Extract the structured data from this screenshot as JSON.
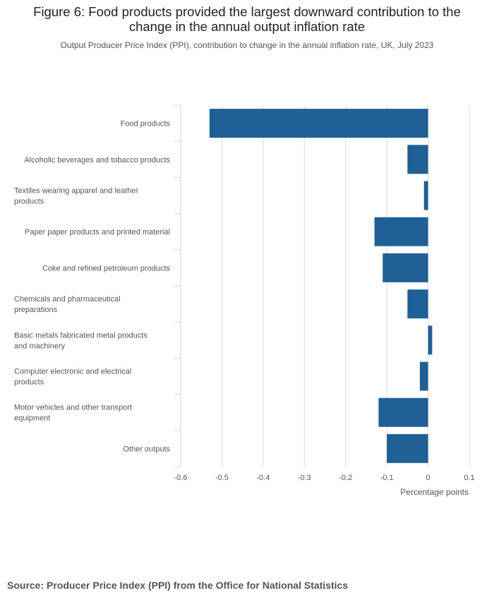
{
  "title": "Figure 6: Food products provided the largest downward contribution to the change in the annual output inflation rate",
  "subtitle": "Output Producer Price Index (PPI), contribution to change in the annual inflation rate, UK, July 2023",
  "source": "Source: Producer Price Index (PPI) from the Office for National Statistics",
  "colors": {
    "bar": "#206095",
    "grid": "#d9d9d9",
    "axis_line": "#c3d7ec",
    "label_text": "#555555"
  },
  "chart_data": {
    "type": "bar",
    "orientation": "horizontal",
    "categories": [
      "Food products",
      "Alcoholic beverages and tobacco products",
      "Textiles wearing apparel and leather products",
      "Paper paper products and printed material",
      "Coke and refined petroleum products",
      "Chemicals and pharmaceutical preparations",
      "Basic metals fabricated metal products and machinery",
      "Computer electronic and electrical products",
      "Motor vehicles and other transport equipment",
      "Other outputs"
    ],
    "category_lines": [
      [
        "Food products"
      ],
      [
        "Alcoholic beverages and tobacco products"
      ],
      [
        "Textiles wearing apparel and leather",
        "products"
      ],
      [
        "Paper paper products and printed material"
      ],
      [
        "Coke and refined petroleum products"
      ],
      [
        "Chemicals and pharmaceutical",
        "preparations"
      ],
      [
        "Basic metals fabricated metal products",
        "and machinery"
      ],
      [
        "Computer electronic and electrical",
        "products"
      ],
      [
        "Motor vehicles and other transport",
        "equipment"
      ],
      [
        "Other outputs"
      ]
    ],
    "values": [
      -0.53,
      -0.05,
      -0.01,
      -0.13,
      -0.11,
      -0.05,
      0.01,
      -0.02,
      -0.12,
      -0.1
    ],
    "xlabel": "Percentage points",
    "ylabel": "",
    "xlim": [
      -0.6,
      0.1
    ],
    "xticks": [
      -0.6,
      -0.5,
      -0.4,
      -0.3,
      -0.2,
      -0.1,
      0,
      0.1
    ],
    "xtick_labels": [
      "-0.6",
      "-0.5",
      "-0.4",
      "-0.3",
      "-0.2",
      "-0.1",
      "0",
      "0.1"
    ],
    "grid": true,
    "legend": "none"
  }
}
